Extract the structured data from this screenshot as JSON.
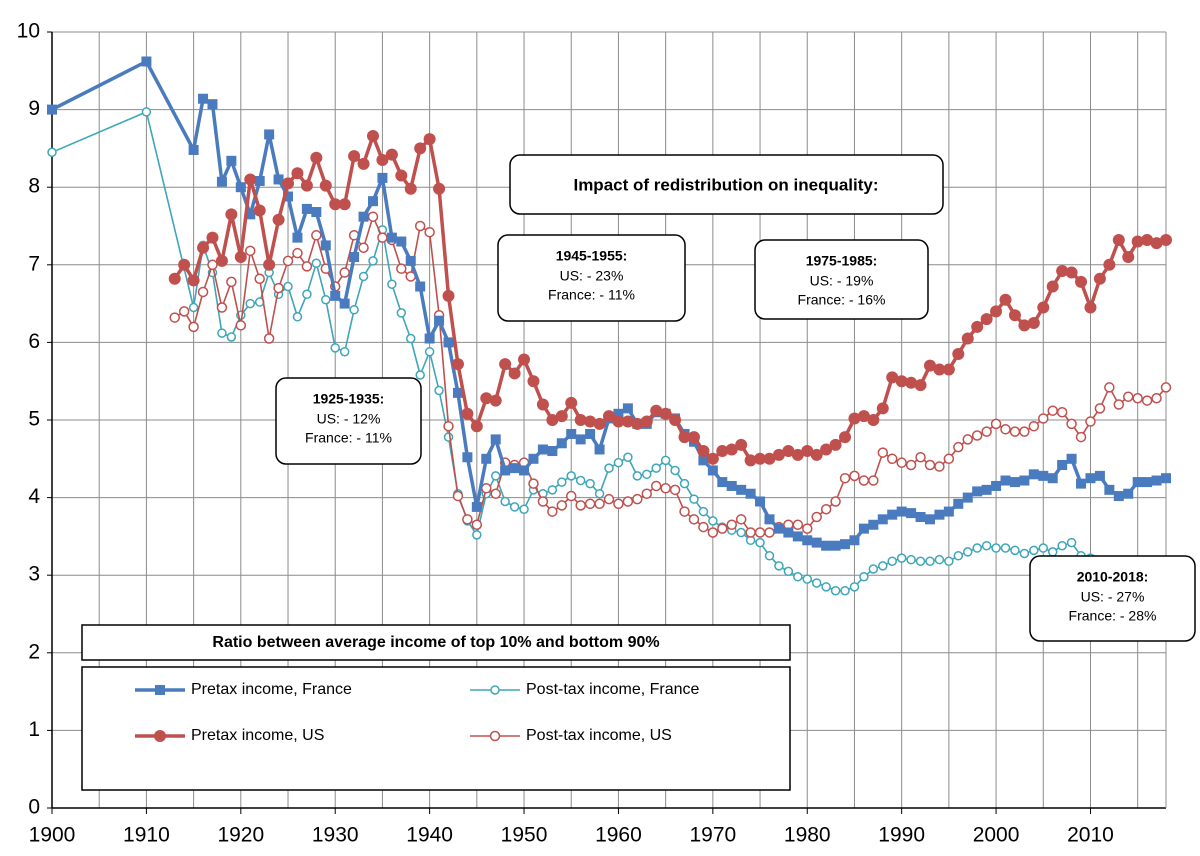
{
  "chart_data": {
    "type": "line",
    "title": "Ratio between average income of top 10% and bottom 90%",
    "note": "Impact of redistribution on inequality:",
    "annotations": [
      {
        "title": "1925-1935:",
        "lines": [
          "US: - 12%",
          "France: - 11%"
        ]
      },
      {
        "title": "1945-1955:",
        "lines": [
          "US: - 23%",
          "France: - 11%"
        ]
      },
      {
        "title": "1975-1985:",
        "lines": [
          "US: - 19%",
          "France: - 16%"
        ]
      },
      {
        "title": "2010-2018:",
        "lines": [
          "US: - 27%",
          "France: - 28%"
        ]
      }
    ],
    "xlim": [
      1900,
      2018
    ],
    "xticks": [
      1900,
      1910,
      1920,
      1930,
      1940,
      1950,
      1960,
      1970,
      1980,
      1990,
      2000,
      2010
    ],
    "xgrid": [
      1905,
      1915,
      1925,
      1935,
      1945,
      1955,
      1965,
      1975,
      1985,
      1995,
      2005,
      2015
    ],
    "ylim": [
      0,
      10
    ],
    "yticks": [
      0,
      1,
      2,
      3,
      4,
      5,
      6,
      7,
      8,
      9,
      10
    ],
    "grid": true,
    "series": [
      {
        "name": "Pretax income, France",
        "color": "#4a7bbf",
        "marker": "square",
        "x": [
          1900,
          1910,
          1915,
          1916,
          1917,
          1918,
          1919,
          1920,
          1921,
          1922,
          1923,
          1924,
          1925,
          1926,
          1927,
          1928,
          1929,
          1930,
          1931,
          1932,
          1933,
          1934,
          1935,
          1936,
          1937,
          1938,
          1939,
          1940,
          1941,
          1942,
          1943,
          1944,
          1945,
          1946,
          1947,
          1948,
          1949,
          1950,
          1951,
          1952,
          1953,
          1954,
          1955,
          1956,
          1957,
          1958,
          1959,
          1960,
          1961,
          1962,
          1963,
          1964,
          1965,
          1966,
          1967,
          1968,
          1969,
          1970,
          1971,
          1972,
          1973,
          1974,
          1975,
          1976,
          1977,
          1978,
          1979,
          1980,
          1981,
          1982,
          1983,
          1984,
          1985,
          1986,
          1987,
          1988,
          1989,
          1990,
          1991,
          1992,
          1993,
          1994,
          1995,
          1996,
          1997,
          1998,
          1999,
          2000,
          2001,
          2002,
          2003,
          2004,
          2005,
          2006,
          2007,
          2008,
          2009,
          2010,
          2011,
          2012,
          2013,
          2014,
          2015,
          2016,
          2017,
          2018
        ],
        "values": [
          9.0,
          9.62,
          8.48,
          9.14,
          9.07,
          8.07,
          8.34,
          8.0,
          7.65,
          8.08,
          8.68,
          8.1,
          7.88,
          7.35,
          7.72,
          7.68,
          7.25,
          6.6,
          6.5,
          7.1,
          7.62,
          7.82,
          8.12,
          7.35,
          7.3,
          7.05,
          6.72,
          6.05,
          6.28,
          6.0,
          5.35,
          4.52,
          3.88,
          4.5,
          4.75,
          4.35,
          4.38,
          4.35,
          4.5,
          4.62,
          4.6,
          4.7,
          4.82,
          4.75,
          4.82,
          4.62,
          5.02,
          5.08,
          5.15,
          4.95,
          4.95,
          5.1,
          5.08,
          5.02,
          4.82,
          4.72,
          4.48,
          4.35,
          4.2,
          4.15,
          4.1,
          4.05,
          3.95,
          3.72,
          3.6,
          3.55,
          3.5,
          3.45,
          3.42,
          3.38,
          3.38,
          3.4,
          3.45,
          3.6,
          3.65,
          3.72,
          3.78,
          3.82,
          3.8,
          3.75,
          3.72,
          3.78,
          3.82,
          3.92,
          4.0,
          4.08,
          4.1,
          4.15,
          4.22,
          4.2,
          4.22,
          4.3,
          4.28,
          4.25,
          4.42,
          4.5,
          4.18,
          4.25,
          4.28,
          4.1,
          4.02,
          4.05,
          4.2,
          4.2,
          4.22,
          4.25
        ]
      },
      {
        "name": "Post-tax income, France",
        "color": "#3ea6b9",
        "marker": "open-circle",
        "x": [
          1900,
          1910,
          1915,
          1916,
          1917,
          1918,
          1919,
          1920,
          1921,
          1922,
          1923,
          1924,
          1925,
          1926,
          1927,
          1928,
          1929,
          1930,
          1931,
          1932,
          1933,
          1934,
          1935,
          1936,
          1937,
          1938,
          1939,
          1940,
          1941,
          1942,
          1943,
          1944,
          1945,
          1946,
          1947,
          1948,
          1949,
          1950,
          1951,
          1952,
          1953,
          1954,
          1955,
          1956,
          1957,
          1958,
          1959,
          1960,
          1961,
          1962,
          1963,
          1964,
          1965,
          1966,
          1967,
          1968,
          1969,
          1970,
          1971,
          1972,
          1973,
          1974,
          1975,
          1976,
          1977,
          1978,
          1979,
          1980,
          1981,
          1982,
          1983,
          1984,
          1985,
          1986,
          1987,
          1988,
          1989,
          1990,
          1991,
          1992,
          1993,
          1994,
          1995,
          1996,
          1997,
          1998,
          1999,
          2000,
          2001,
          2002,
          2003,
          2004,
          2005,
          2006,
          2007,
          2008,
          2009,
          2010,
          2011
        ],
        "values": [
          8.45,
          8.97,
          6.45,
          7.25,
          6.9,
          6.12,
          6.07,
          6.35,
          6.5,
          6.52,
          6.9,
          6.62,
          6.72,
          6.33,
          6.62,
          7.02,
          6.55,
          5.93,
          5.88,
          6.42,
          6.85,
          7.05,
          7.45,
          6.75,
          6.38,
          6.05,
          5.58,
          5.88,
          5.38,
          4.78,
          4.05,
          3.7,
          3.52,
          4.05,
          4.28,
          3.95,
          3.88,
          3.85,
          4.1,
          4.05,
          4.1,
          4.2,
          4.28,
          4.22,
          4.18,
          4.05,
          4.38,
          4.45,
          4.52,
          4.28,
          4.3,
          4.38,
          4.48,
          4.35,
          4.18,
          3.98,
          3.82,
          3.7,
          3.62,
          3.58,
          3.55,
          3.45,
          3.42,
          3.25,
          3.12,
          3.05,
          2.98,
          2.95,
          2.9,
          2.85,
          2.8,
          2.8,
          2.85,
          2.98,
          3.08,
          3.12,
          3.18,
          3.22,
          3.2,
          3.18,
          3.18,
          3.2,
          3.18,
          3.25,
          3.3,
          3.35,
          3.38,
          3.35,
          3.35,
          3.32,
          3.28,
          3.32,
          3.35,
          3.3,
          3.38,
          3.42,
          3.25,
          3.22,
          3.18
        ]
      },
      {
        "name": "Pretax income, US",
        "color": "#c0504d",
        "marker": "circle",
        "x": [
          1913,
          1914,
          1915,
          1916,
          1917,
          1918,
          1919,
          1920,
          1921,
          1922,
          1923,
          1924,
          1925,
          1926,
          1927,
          1928,
          1929,
          1930,
          1931,
          1932,
          1933,
          1934,
          1935,
          1936,
          1937,
          1938,
          1939,
          1940,
          1941,
          1942,
          1943,
          1944,
          1945,
          1946,
          1947,
          1948,
          1949,
          1950,
          1951,
          1952,
          1953,
          1954,
          1955,
          1956,
          1957,
          1958,
          1959,
          1960,
          1961,
          1962,
          1963,
          1964,
          1965,
          1966,
          1967,
          1968,
          1969,
          1970,
          1971,
          1972,
          1973,
          1974,
          1975,
          1976,
          1977,
          1978,
          1979,
          1980,
          1981,
          1982,
          1983,
          1984,
          1985,
          1986,
          1987,
          1988,
          1989,
          1990,
          1991,
          1992,
          1993,
          1994,
          1995,
          1996,
          1997,
          1998,
          1999,
          2000,
          2001,
          2002,
          2003,
          2004,
          2005,
          2006,
          2007,
          2008,
          2009,
          2010,
          2011,
          2012,
          2013,
          2014,
          2015,
          2016,
          2017,
          2018
        ],
        "values": [
          6.82,
          7.0,
          6.8,
          7.22,
          7.35,
          7.05,
          7.65,
          7.1,
          8.1,
          7.7,
          7.0,
          7.58,
          8.05,
          8.18,
          8.02,
          8.38,
          8.02,
          7.78,
          7.78,
          8.4,
          8.3,
          8.66,
          8.35,
          8.42,
          8.15,
          7.98,
          8.5,
          8.62,
          7.98,
          6.6,
          5.72,
          5.08,
          4.92,
          5.28,
          5.25,
          5.72,
          5.6,
          5.78,
          5.5,
          5.2,
          5.0,
          5.05,
          5.22,
          5.0,
          4.98,
          4.95,
          5.05,
          4.98,
          4.98,
          4.95,
          4.98,
          5.12,
          5.08,
          5.0,
          4.78,
          4.78,
          4.6,
          4.5,
          4.6,
          4.62,
          4.68,
          4.48,
          4.5,
          4.5,
          4.55,
          4.6,
          4.55,
          4.6,
          4.55,
          4.62,
          4.68,
          4.78,
          5.02,
          5.05,
          5.0,
          5.15,
          5.55,
          5.5,
          5.48,
          5.45,
          5.7,
          5.65,
          5.65,
          5.85,
          6.05,
          6.2,
          6.3,
          6.4,
          6.55,
          6.35,
          6.22,
          6.25,
          6.45,
          6.72,
          6.92,
          6.9,
          6.78,
          6.45,
          6.82,
          7.0,
          7.32,
          7.1,
          7.3,
          7.32,
          7.28,
          7.32
        ]
      },
      {
        "name": "Post-tax income, US",
        "color": "#c0504d",
        "marker": "open-circle",
        "x": [
          1913,
          1914,
          1915,
          1916,
          1917,
          1918,
          1919,
          1920,
          1921,
          1922,
          1923,
          1924,
          1925,
          1926,
          1927,
          1928,
          1929,
          1930,
          1931,
          1932,
          1933,
          1934,
          1935,
          1936,
          1937,
          1938,
          1939,
          1940,
          1941,
          1942,
          1943,
          1944,
          1945,
          1946,
          1947,
          1948,
          1949,
          1950,
          1951,
          1952,
          1953,
          1954,
          1955,
          1956,
          1957,
          1958,
          1959,
          1960,
          1961,
          1962,
          1963,
          1964,
          1965,
          1966,
          1967,
          1968,
          1969,
          1970,
          1971,
          1972,
          1973,
          1974,
          1975,
          1976,
          1977,
          1978,
          1979,
          1980,
          1981,
          1982,
          1983,
          1984,
          1985,
          1986,
          1987,
          1988,
          1989,
          1990,
          1991,
          1992,
          1993,
          1994,
          1995,
          1996,
          1997,
          1998,
          1999,
          2000,
          2001,
          2002,
          2003,
          2004,
          2005,
          2006,
          2007,
          2008,
          2009,
          2010,
          2011,
          2012,
          2013,
          2014,
          2015,
          2016,
          2017,
          2018
        ],
        "values": [
          6.32,
          6.4,
          6.2,
          6.65,
          7.0,
          6.45,
          6.78,
          6.22,
          7.18,
          6.82,
          6.05,
          6.7,
          7.05,
          7.15,
          6.98,
          7.38,
          6.95,
          6.72,
          6.9,
          7.38,
          7.22,
          7.62,
          7.35,
          7.32,
          6.95,
          6.85,
          7.5,
          7.42,
          6.35,
          4.92,
          4.02,
          3.72,
          3.65,
          4.12,
          4.05,
          4.45,
          4.42,
          4.45,
          4.18,
          3.95,
          3.82,
          3.9,
          4.02,
          3.9,
          3.92,
          3.92,
          3.98,
          3.92,
          3.95,
          3.98,
          4.05,
          4.15,
          4.12,
          4.1,
          3.82,
          3.72,
          3.62,
          3.55,
          3.6,
          3.65,
          3.72,
          3.55,
          3.55,
          3.55,
          3.62,
          3.65,
          3.65,
          3.6,
          3.75,
          3.85,
          3.95,
          4.25,
          4.28,
          4.22,
          4.22,
          4.58,
          4.5,
          4.45,
          4.42,
          4.52,
          4.42,
          4.4,
          4.5,
          4.65,
          4.75,
          4.8,
          4.85,
          4.95,
          4.88,
          4.85,
          4.85,
          4.92,
          5.02,
          5.12,
          5.1,
          4.95,
          4.78,
          4.98,
          5.15,
          5.42,
          5.2,
          5.3,
          5.28,
          5.25,
          5.28,
          5.42
        ]
      }
    ]
  }
}
